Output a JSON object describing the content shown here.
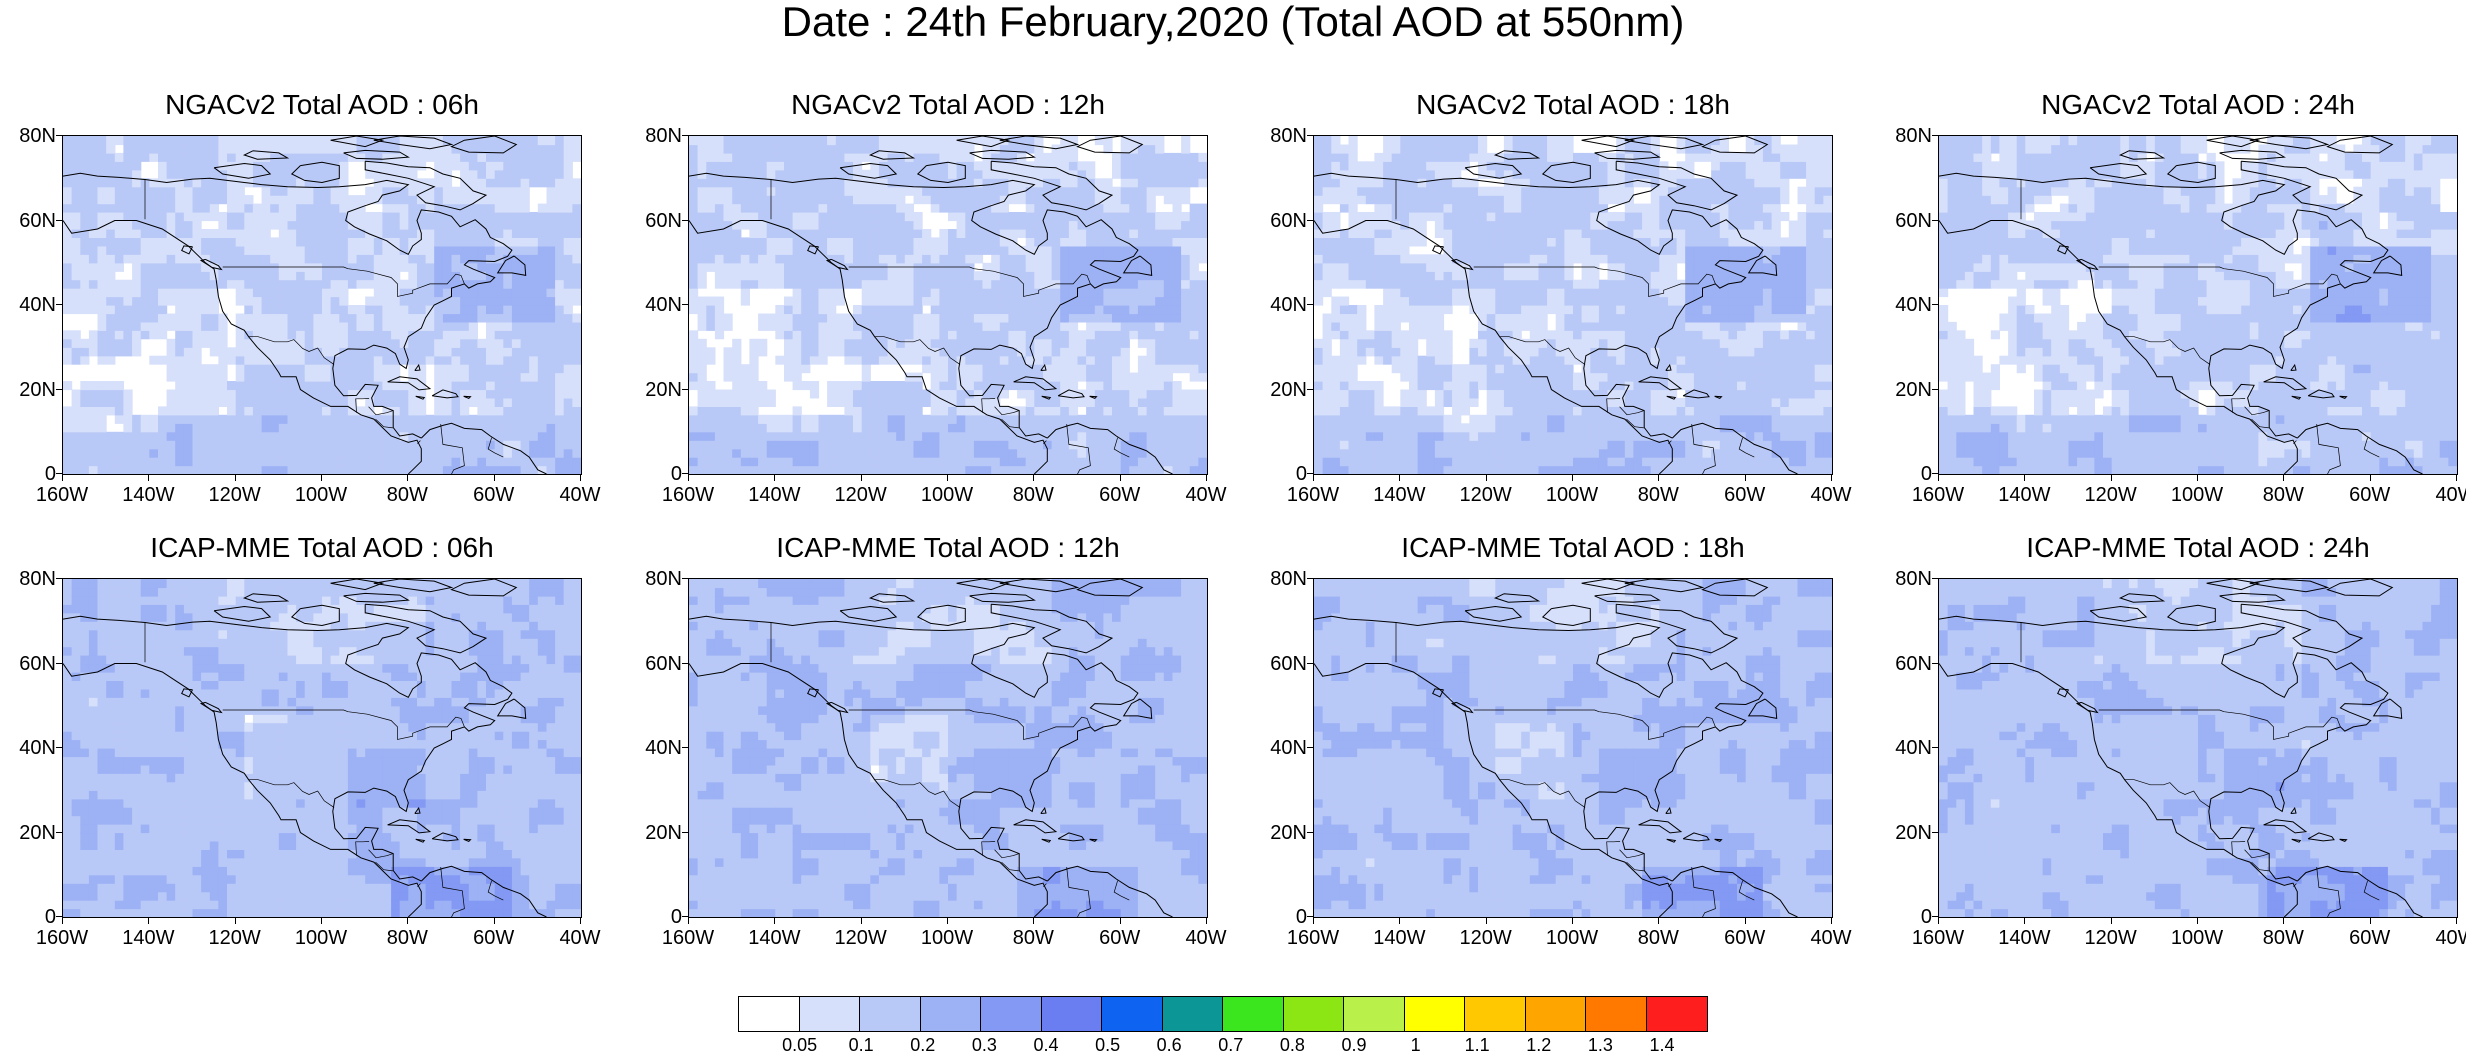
{
  "title": "Date : 24th February,2020 (Total AOD at 550nm)",
  "panels": [
    {
      "title": "NGACv2 Total AOD : 06h",
      "model": "ngac",
      "hour": 6
    },
    {
      "title": "NGACv2 Total AOD : 12h",
      "model": "ngac",
      "hour": 12
    },
    {
      "title": "NGACv2 Total AOD : 18h",
      "model": "ngac",
      "hour": 18
    },
    {
      "title": "NGACv2 Total AOD : 24h",
      "model": "ngac",
      "hour": 24
    },
    {
      "title": "ICAP-MME Total AOD : 06h",
      "model": "icap",
      "hour": 6
    },
    {
      "title": "ICAP-MME Total AOD : 12h",
      "model": "icap",
      "hour": 12
    },
    {
      "title": "ICAP-MME Total AOD : 18h",
      "model": "icap",
      "hour": 18
    },
    {
      "title": "ICAP-MME Total AOD : 24h",
      "model": "icap",
      "hour": 24
    }
  ],
  "axes": {
    "lat_labels": [
      "80N",
      "60N",
      "40N",
      "20N",
      "0"
    ],
    "lon_labels": [
      "160W",
      "140W",
      "120W",
      "100W",
      "80W",
      "60W",
      "40W"
    ],
    "lat_range": [
      0,
      80
    ],
    "lon_range": [
      -160,
      -40
    ]
  },
  "colorbar": {
    "labels": [
      "0.05",
      "0.1",
      "0.2",
      "0.3",
      "0.4",
      "0.5",
      "0.6",
      "0.7",
      "0.8",
      "0.9",
      "1",
      "1.1",
      "1.2",
      "1.3",
      "1.4"
    ],
    "colors": [
      "#ffffff",
      "#d7e0fb",
      "#b9c9f7",
      "#9db1f5",
      "#8399f3",
      "#6b7ef1",
      "#0e64f0",
      "#0c9696",
      "#3ce61e",
      "#8ce614",
      "#b9f04a",
      "#ffff00",
      "#ffc800",
      "#ffa500",
      "#ff7800",
      "#ff1e1e"
    ]
  }
}
